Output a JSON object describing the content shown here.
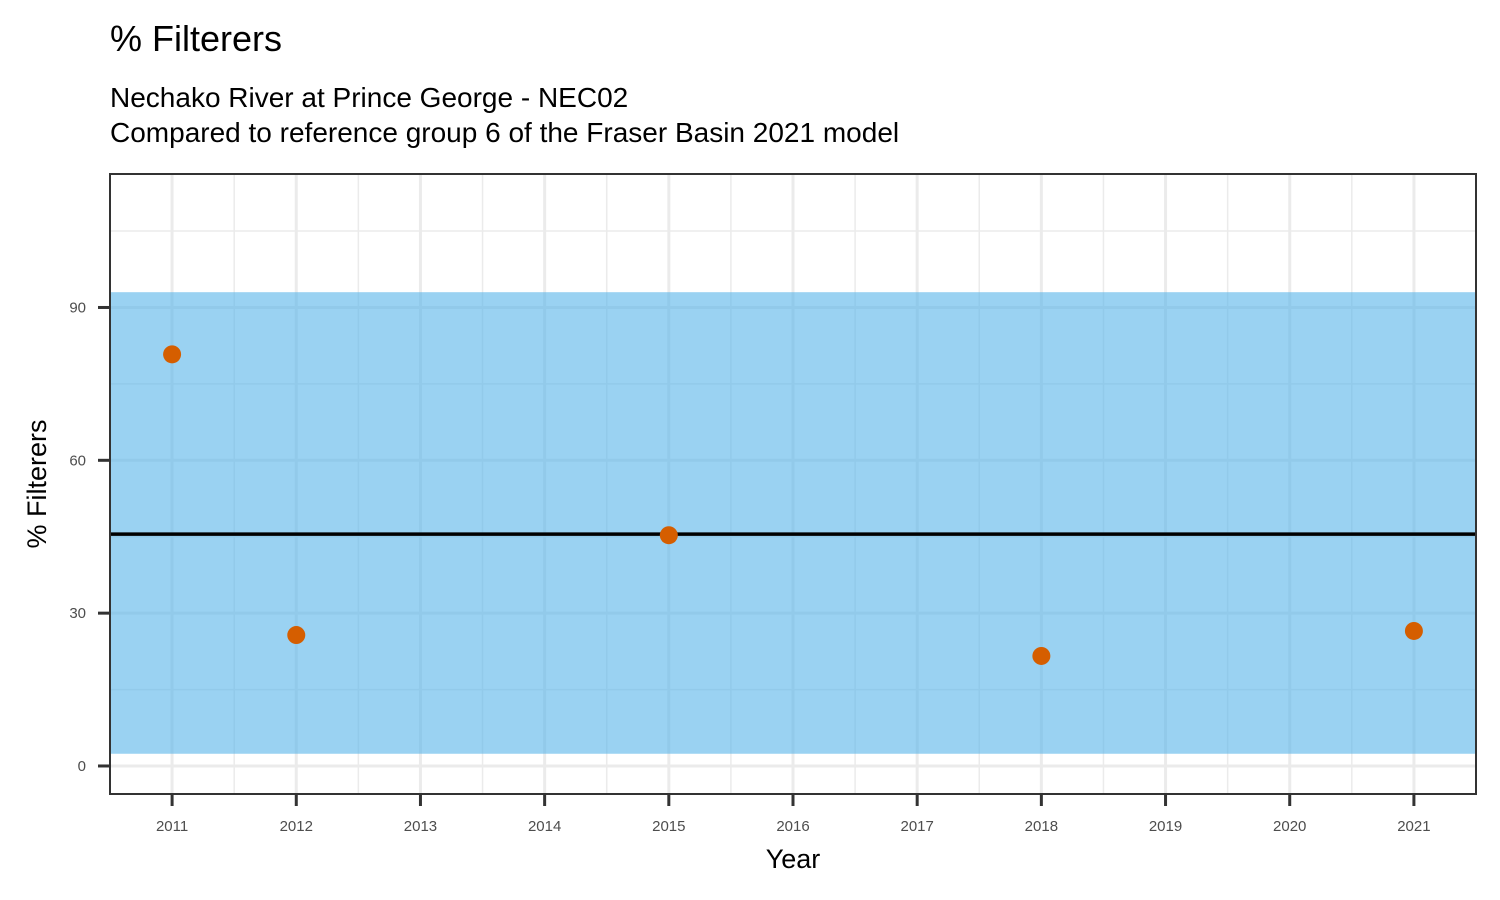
{
  "chart_data": {
    "type": "scatter",
    "title": "% Filterers",
    "subtitle_lines": [
      "Nechako River at Prince George - NEC02",
      "Compared to reference group 6 of the Fraser Basin 2021 model"
    ],
    "xlabel": "Year",
    "ylabel": "% Filterers",
    "x_ticks": [
      2011,
      2012,
      2013,
      2014,
      2015,
      2016,
      2017,
      2018,
      2019,
      2020,
      2021
    ],
    "y_ticks": [
      0,
      30,
      60,
      90
    ],
    "xlim": [
      2010.5,
      2021.5
    ],
    "ylim": [
      -5.5,
      116.2
    ],
    "grid": true,
    "points": [
      {
        "x": 2011,
        "y": 80.8
      },
      {
        "x": 2012,
        "y": 25.7
      },
      {
        "x": 2015,
        "y": 45.3
      },
      {
        "x": 2018,
        "y": 21.6
      },
      {
        "x": 2021,
        "y": 26.5
      }
    ],
    "reference_line": {
      "y": 45.5,
      "color": "#000000"
    },
    "reference_band": {
      "ymin": 2.4,
      "ymax": 93.0,
      "color": "#56B4E9",
      "opacity": 0.6
    },
    "point_color": "#D55E00",
    "legend": null
  }
}
